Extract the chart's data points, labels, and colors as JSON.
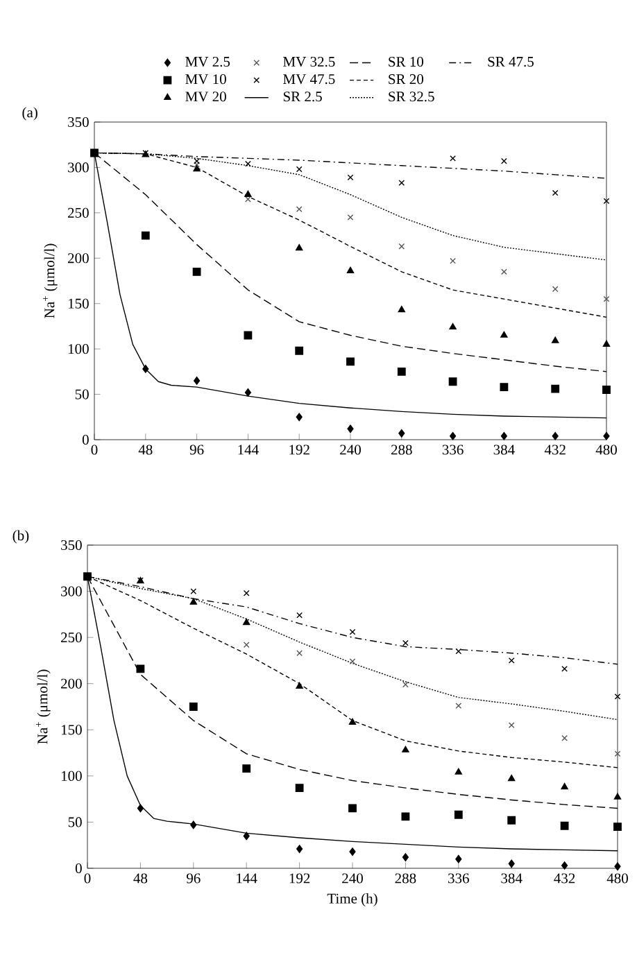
{
  "chart_data": [
    {
      "type": "scatter",
      "title": "(a)",
      "ylabel": "Na$^{+}$ (μmol/l)",
      "xlim": [
        0,
        480
      ],
      "ylim": [
        0,
        350
      ],
      "xticks": [
        0,
        48,
        96,
        144,
        192,
        240,
        288,
        336,
        384,
        432,
        480
      ],
      "yticks": [
        0,
        50,
        100,
        150,
        200,
        250,
        300,
        350
      ],
      "legend": "top",
      "grid": false,
      "series": [
        {
          "name": "MV 2.5",
          "type": "scatter",
          "marker": "diamond",
          "color": "#000000",
          "x": [
            48,
            96,
            144,
            192,
            240,
            288,
            336,
            384,
            432,
            480
          ],
          "values": [
            78,
            65,
            52,
            25,
            12,
            7,
            4,
            4,
            4,
            4
          ]
        },
        {
          "name": "MV 10",
          "type": "scatter",
          "marker": "square",
          "color": "#000000",
          "x": [
            0,
            48,
            96,
            144,
            192,
            240,
            288,
            336,
            384,
            432,
            480
          ],
          "values": [
            316,
            225,
            185,
            115,
            98,
            86,
            75,
            64,
            58,
            56,
            55
          ]
        },
        {
          "name": "MV 20",
          "type": "scatter",
          "marker": "triangle",
          "color": "#000000",
          "x": [
            48,
            96,
            144,
            192,
            240,
            288,
            336,
            384,
            432,
            480
          ],
          "values": [
            314,
            298,
            270,
            211,
            186,
            143,
            124,
            115,
            109,
            105
          ]
        },
        {
          "name": "MV 32.5",
          "type": "scatter",
          "marker": "cross",
          "color": "#555555",
          "x": [
            96,
            144,
            192,
            240,
            288,
            336,
            384,
            432,
            480
          ],
          "values": [
            303,
            265,
            254,
            245,
            213,
            197,
            185,
            166,
            155
          ]
        },
        {
          "name": "MV 47.5",
          "type": "scatter",
          "marker": "cross",
          "color": "#000000",
          "x": [
            48,
            96,
            144,
            192,
            240,
            288,
            336,
            384,
            432,
            480
          ],
          "values": [
            316,
            307,
            304,
            298,
            289,
            283,
            310,
            307,
            272,
            263
          ]
        },
        {
          "name": "SR 2.5",
          "type": "line",
          "line_style": "solid",
          "color": "#000000",
          "x": [
            0,
            12,
            24,
            36,
            48,
            60,
            72,
            96,
            144,
            192,
            240,
            288,
            336,
            384,
            432,
            480
          ],
          "values": [
            316,
            240,
            160,
            105,
            78,
            64,
            60,
            58,
            48,
            40,
            35,
            31,
            28,
            26,
            25,
            24
          ]
        },
        {
          "name": "SR 10",
          "type": "line",
          "line_style": "long dashed",
          "color": "#000000",
          "x": [
            0,
            48,
            96,
            144,
            192,
            240,
            288,
            336,
            384,
            432,
            480
          ],
          "values": [
            316,
            270,
            215,
            165,
            130,
            115,
            103,
            95,
            88,
            81,
            75
          ]
        },
        {
          "name": "SR 20",
          "type": "line",
          "line_style": "dashed",
          "color": "#000000",
          "x": [
            0,
            48,
            96,
            144,
            192,
            240,
            288,
            336,
            384,
            432,
            480
          ],
          "values": [
            316,
            315,
            300,
            268,
            242,
            213,
            185,
            165,
            155,
            145,
            135
          ]
        },
        {
          "name": "SR 32.5",
          "type": "line",
          "line_style": "dotted",
          "color": "#000000",
          "x": [
            0,
            48,
            96,
            144,
            192,
            240,
            288,
            336,
            384,
            432,
            480
          ],
          "values": [
            316,
            315,
            310,
            302,
            292,
            270,
            245,
            225,
            212,
            205,
            198
          ]
        },
        {
          "name": "SR 47.5",
          "type": "line",
          "line_style": "dash dot",
          "color": "#000000",
          "x": [
            0,
            48,
            96,
            144,
            192,
            240,
            288,
            336,
            384,
            432,
            480
          ],
          "values": [
            316,
            315,
            312,
            310,
            308,
            305,
            302,
            299,
            296,
            292,
            288
          ]
        }
      ]
    },
    {
      "type": "scatter",
      "title": "(b)",
      "xlabel": "Time (h)",
      "ylabel": "Na$^{+}$ (μmol/l)",
      "xlim": [
        0,
        480
      ],
      "ylim": [
        0,
        350
      ],
      "xticks": [
        0,
        48,
        96,
        144,
        192,
        240,
        288,
        336,
        384,
        432,
        480
      ],
      "yticks": [
        0,
        50,
        100,
        150,
        200,
        250,
        300,
        350
      ],
      "grid": false,
      "series": [
        {
          "type": "scatter",
          "marker": "diamond",
          "color": "#000000",
          "x": [
            48,
            96,
            144,
            192,
            240,
            288,
            336,
            384,
            432,
            480
          ],
          "values": [
            65,
            47,
            35,
            21,
            18,
            12,
            10,
            5,
            3,
            2
          ]
        },
        {
          "type": "scatter",
          "marker": "square",
          "color": "#000000",
          "x": [
            0,
            48,
            96,
            144,
            192,
            240,
            288,
            336,
            384,
            432,
            480
          ],
          "values": [
            316,
            216,
            175,
            108,
            87,
            65,
            56,
            58,
            52,
            46,
            45
          ]
        },
        {
          "type": "scatter",
          "marker": "triangle",
          "color": "#000000",
          "x": [
            48,
            96,
            144,
            192,
            240,
            288,
            336,
            384,
            432,
            480
          ],
          "values": [
            311,
            288,
            266,
            197,
            158,
            128,
            104,
            97,
            88,
            77
          ]
        },
        {
          "type": "scatter",
          "marker": "cross",
          "color": "#555555",
          "x": [
            144,
            192,
            240,
            288,
            336,
            384,
            432,
            480
          ],
          "values": [
            242,
            233,
            224,
            199,
            176,
            155,
            141,
            124
          ]
        },
        {
          "type": "scatter",
          "marker": "cross",
          "color": "#000000",
          "x": [
            48,
            96,
            144,
            192,
            240,
            288,
            336,
            384,
            432,
            480
          ],
          "values": [
            312,
            300,
            298,
            274,
            256,
            244,
            235,
            225,
            216,
            186
          ]
        },
        {
          "type": "line",
          "line_style": "solid",
          "color": "#000000",
          "x": [
            0,
            12,
            24,
            36,
            48,
            60,
            72,
            96,
            144,
            192,
            240,
            288,
            336,
            384,
            432,
            480
          ],
          "values": [
            316,
            240,
            160,
            100,
            68,
            54,
            51,
            48,
            38,
            33,
            29,
            26,
            23,
            21,
            20,
            19
          ]
        },
        {
          "type": "line",
          "line_style": "long dashed",
          "color": "#000000",
          "x": [
            0,
            48,
            96,
            144,
            192,
            240,
            288,
            336,
            384,
            432,
            480
          ],
          "values": [
            316,
            210,
            160,
            124,
            107,
            95,
            87,
            80,
            74,
            69,
            65
          ]
        },
        {
          "type": "line",
          "line_style": "dashed",
          "color": "#000000",
          "x": [
            0,
            48,
            96,
            144,
            192,
            240,
            288,
            336,
            384,
            432,
            480
          ],
          "values": [
            316,
            290,
            260,
            232,
            200,
            160,
            138,
            127,
            120,
            115,
            109
          ]
        },
        {
          "type": "line",
          "line_style": "dotted",
          "color": "#000000",
          "x": [
            0,
            48,
            96,
            144,
            192,
            240,
            288,
            336,
            384,
            432,
            480
          ],
          "values": [
            316,
            303,
            292,
            270,
            245,
            222,
            202,
            185,
            178,
            170,
            161
          ]
        },
        {
          "type": "line",
          "line_style": "dash dot",
          "color": "#000000",
          "x": [
            0,
            48,
            96,
            144,
            192,
            240,
            288,
            336,
            384,
            432,
            480
          ],
          "values": [
            316,
            305,
            292,
            283,
            265,
            250,
            240,
            237,
            233,
            228,
            221
          ]
        }
      ]
    }
  ]
}
